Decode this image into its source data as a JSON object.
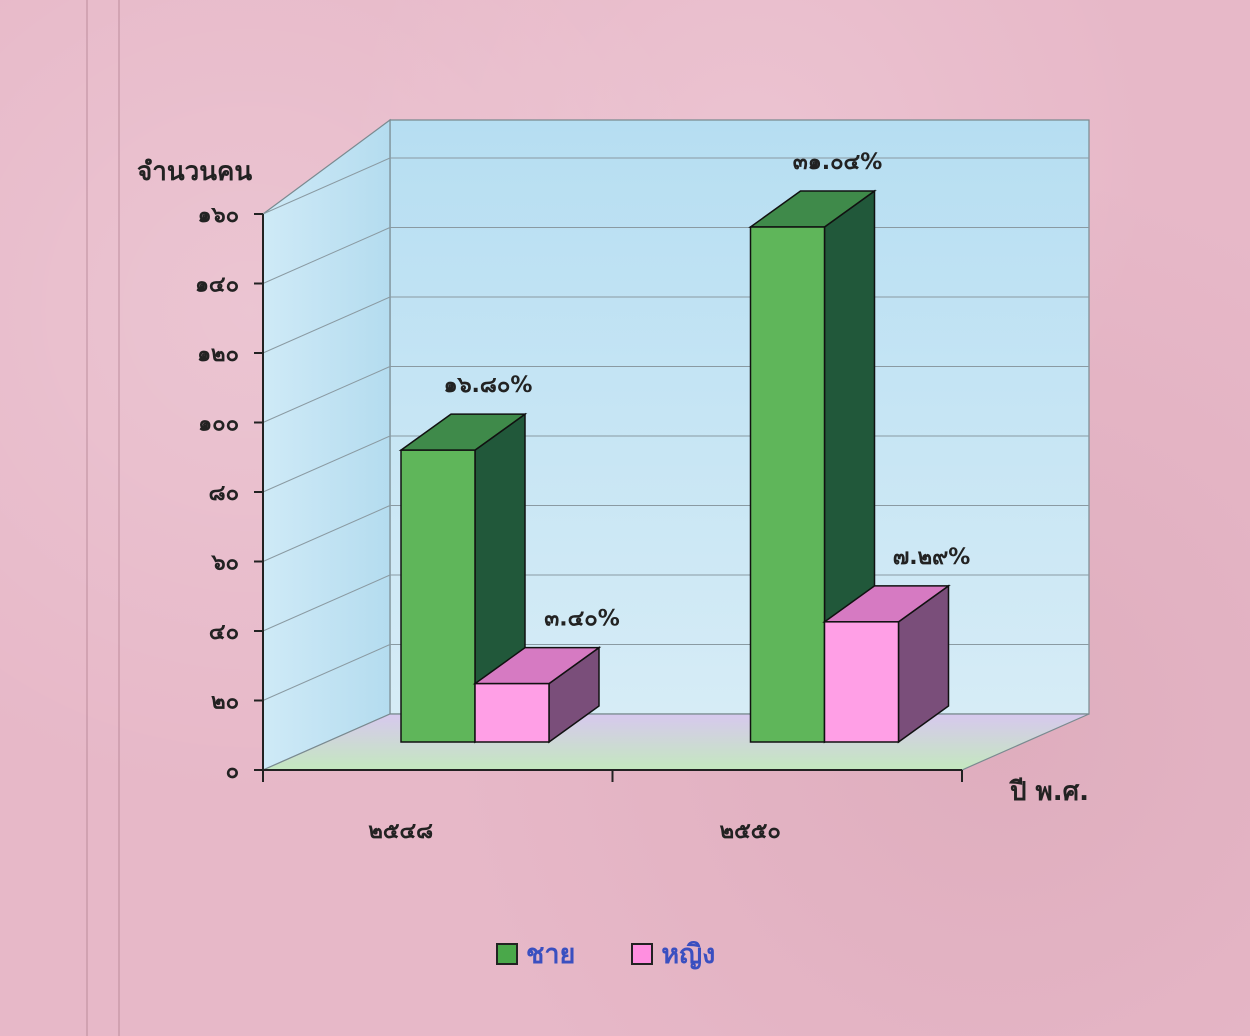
{
  "chart_data": {
    "type": "bar",
    "title": "",
    "ylabel": "จำนวนคน",
    "xlabel": "ปี พ.ศ.",
    "categories": [
      "๒๕๔๘",
      "๒๕๕๐"
    ],
    "series": [
      {
        "name": "ชาย",
        "values": [
          85,
          150
        ],
        "labels": [
          "๑๖.๘๐%",
          "๓๑.๐๔%"
        ],
        "color": "#4aa84a"
      },
      {
        "name": "หญิง",
        "values": [
          17,
          35
        ],
        "labels": [
          "๓.๔๐%",
          "๗.๒๙%"
        ],
        "color": "#ff8fe0"
      }
    ],
    "ylim": [
      0,
      160
    ],
    "y_ticks": [
      {
        "value": 0,
        "label": "๐"
      },
      {
        "value": 20,
        "label": "๒๐"
      },
      {
        "value": 40,
        "label": "๔๐"
      },
      {
        "value": 60,
        "label": "๖๐"
      },
      {
        "value": 80,
        "label": "๘๐"
      },
      {
        "value": 100,
        "label": "๑๐๐"
      },
      {
        "value": 120,
        "label": "๑๒๐"
      },
      {
        "value": 140,
        "label": "๑๔๐"
      },
      {
        "value": 160,
        "label": "๑๖๐"
      }
    ],
    "grid": true,
    "legend_position": "bottom",
    "colors": {
      "wall": "#bfe3f3",
      "floor": "#c9e6c6",
      "text": "#222222",
      "legend_text": "#3a4fc0"
    }
  }
}
